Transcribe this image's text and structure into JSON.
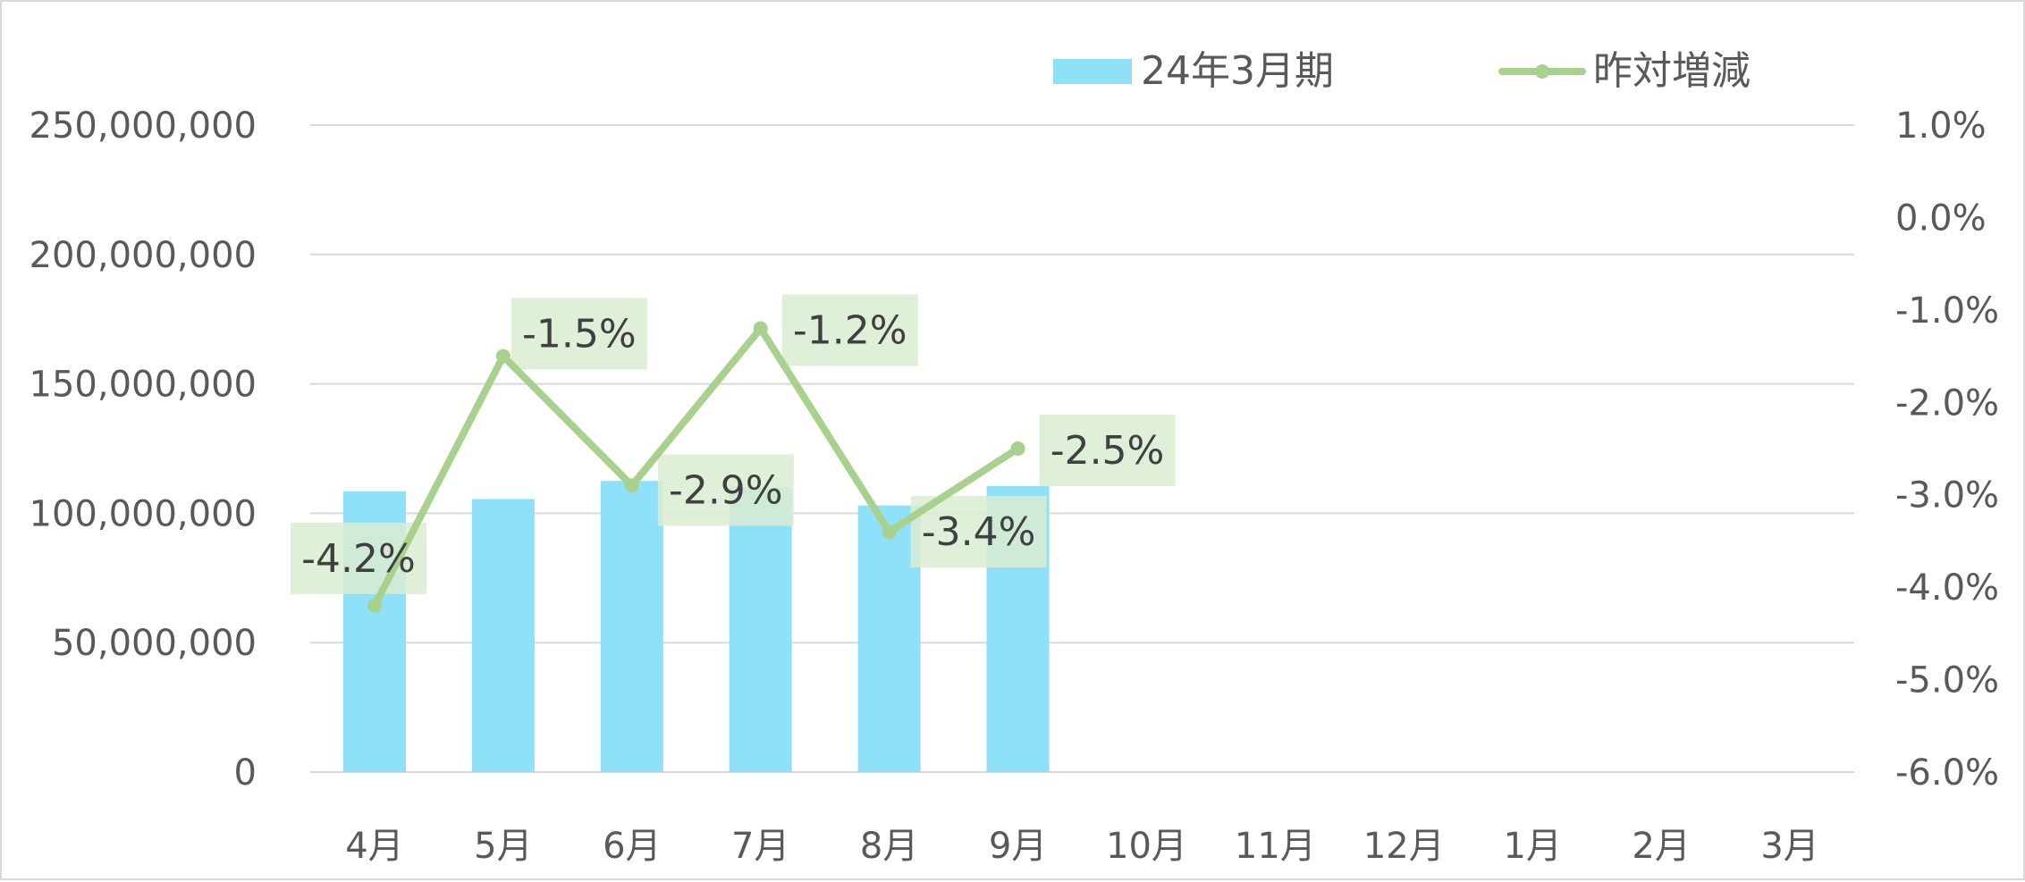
{
  "chart_data": {
    "type": "bar",
    "categories": [
      "4月",
      "5月",
      "6月",
      "7月",
      "8月",
      "9月",
      "10月",
      "11月",
      "12月",
      "1月",
      "2月",
      "3月"
    ],
    "series": [
      {
        "name": "24年3月期",
        "type": "bar",
        "axis": "left",
        "values": [
          108500000,
          105500000,
          112500000,
          110000000,
          103000000,
          110500000,
          null,
          null,
          null,
          null,
          null,
          null
        ]
      },
      {
        "name": "昨対増減",
        "type": "line",
        "axis": "right",
        "values": [
          -4.2,
          -1.5,
          -2.9,
          -1.2,
          -3.4,
          -2.5,
          null,
          null,
          null,
          null,
          null,
          null
        ],
        "labels": [
          "-4.2%",
          "-1.5%",
          "-2.9%",
          "-1.2%",
          "-3.4%",
          "-2.5%"
        ]
      }
    ],
    "left_axis": {
      "ylim": [
        0,
        250000000
      ],
      "ticks": [
        "0",
        "50,000,000",
        "100,000,000",
        "150,000,000",
        "200,000,000",
        "250,000,000"
      ]
    },
    "right_axis": {
      "ylim": [
        -6.0,
        1.0
      ],
      "ticks": [
        "-6.0%",
        "-5.0%",
        "-4.0%",
        "-3.0%",
        "-2.0%",
        "-1.0%",
        "0.0%",
        "1.0%"
      ]
    },
    "grid": true,
    "legend_position": "top",
    "colors": {
      "bar": "#8fe1fa",
      "line": "#a9d18e",
      "label_bg": "#dbecd0",
      "grid": "#d9d9d9"
    }
  }
}
